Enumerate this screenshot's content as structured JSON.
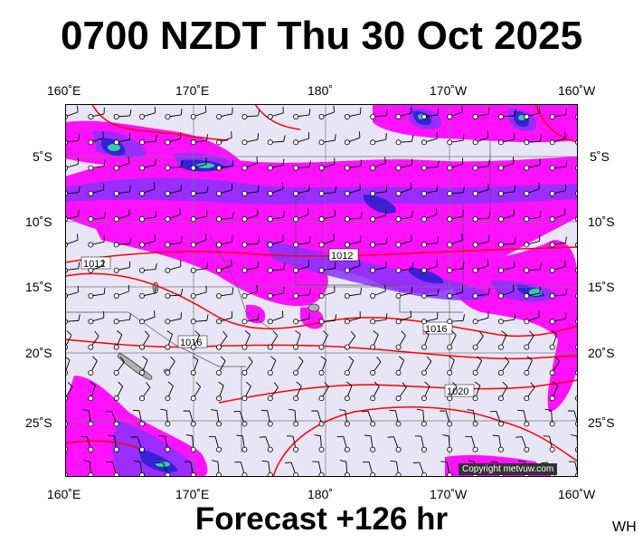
{
  "title": "0700 NZDT Thu 30 Oct 2025",
  "forecast": "Forecast +126 hr",
  "corner_tag": "WH",
  "copyright": "Copyright metvuw.com",
  "lon_labels": [
    "160˚E",
    "170˚E",
    "180˚",
    "170˚W",
    "160˚W"
  ],
  "lat_labels": [
    "5˚S",
    "10˚S",
    "15˚S",
    "20˚S",
    "25˚S"
  ],
  "isobar_labels": [
    "1012",
    "1012",
    "1016",
    "1016",
    "1020"
  ],
  "colors": {
    "background": "#e8e6f6",
    "precip_light": "#ff00ff",
    "precip_mid": "#8833ff",
    "precip_heavy": "#2222cc",
    "precip_core": "#33ccaa",
    "isobar": "#ff0000",
    "land": "#b0b0b0"
  },
  "map": {
    "lon_range": [
      "160˚E",
      "160˚W"
    ],
    "lat_range": [
      "1˚S",
      "29˚S"
    ],
    "gridlines": true,
    "overlay": "wind-barbs"
  }
}
